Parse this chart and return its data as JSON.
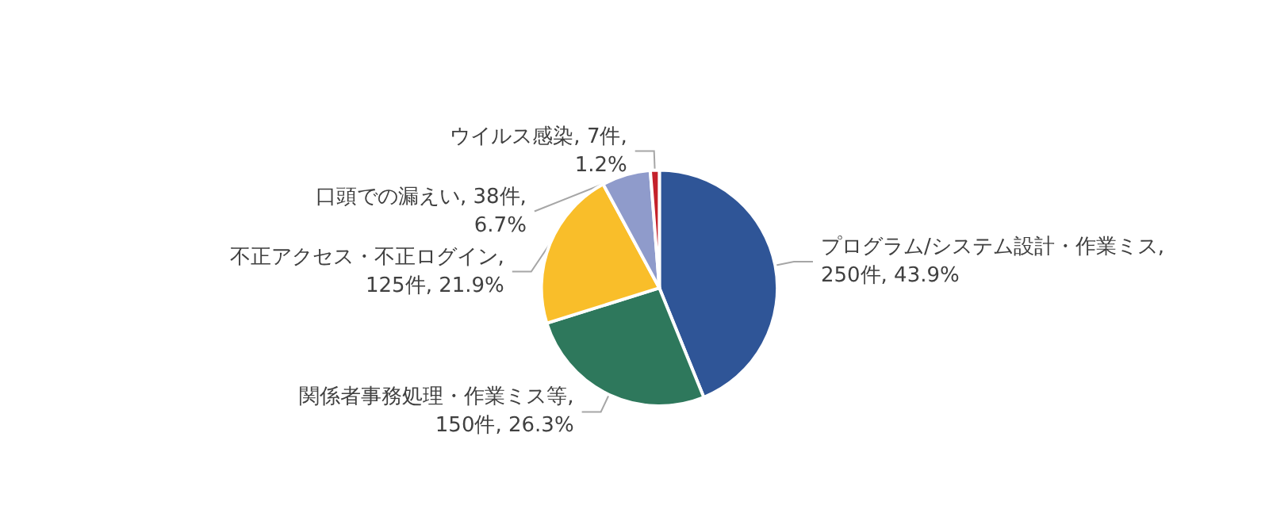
{
  "chart_data": {
    "type": "pie",
    "categories": [
      "プログラム/システム設計・作業ミス",
      "関係者事務処理・作業ミス等",
      "不正アクセス・不正ログイン",
      "口頭での漏えい",
      "ウイルス感染"
    ],
    "values": [
      250,
      150,
      125,
      38,
      7
    ],
    "value_labels": [
      ",\n250件, 43.9%",
      ",\n150件, 26.3%",
      ",\n125件, 21.9%",
      ", 38件,\n6.7%",
      ", 7件,\n1.2%"
    ],
    "colors": [
      "#2f5597",
      "#2e785c",
      "#f9be2a",
      "#8f9bcb",
      "#c4212b"
    ],
    "legend": false
  }
}
